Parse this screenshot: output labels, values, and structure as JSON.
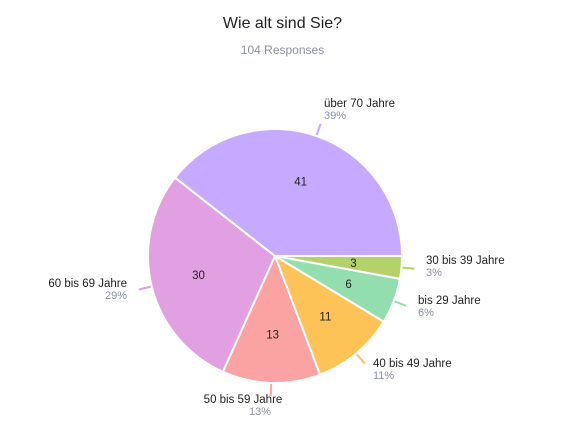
{
  "chart_data": {
    "type": "pie",
    "title": "Wie alt sind Sie?",
    "subtitle": "104 Responses",
    "slices": [
      {
        "label": "30 bis 39 Jahre",
        "value": 3,
        "percent": "3%",
        "color": "#b3d36a"
      },
      {
        "label": "bis 29 Jahre",
        "value": 6,
        "percent": "6%",
        "color": "#93deaf"
      },
      {
        "label": "40 bis 49 Jahre",
        "value": 11,
        "percent": "11%",
        "color": "#fdc356"
      },
      {
        "label": "50 bis 59 Jahre",
        "value": 13,
        "percent": "13%",
        "color": "#fba3a3"
      },
      {
        "label": "60 bis 69 Jahre",
        "value": 30,
        "percent": "29%",
        "color": "#e1a0e2"
      },
      {
        "label": "über 70 Jahre",
        "value": 41,
        "percent": "39%",
        "color": "#c6aaff"
      }
    ]
  }
}
